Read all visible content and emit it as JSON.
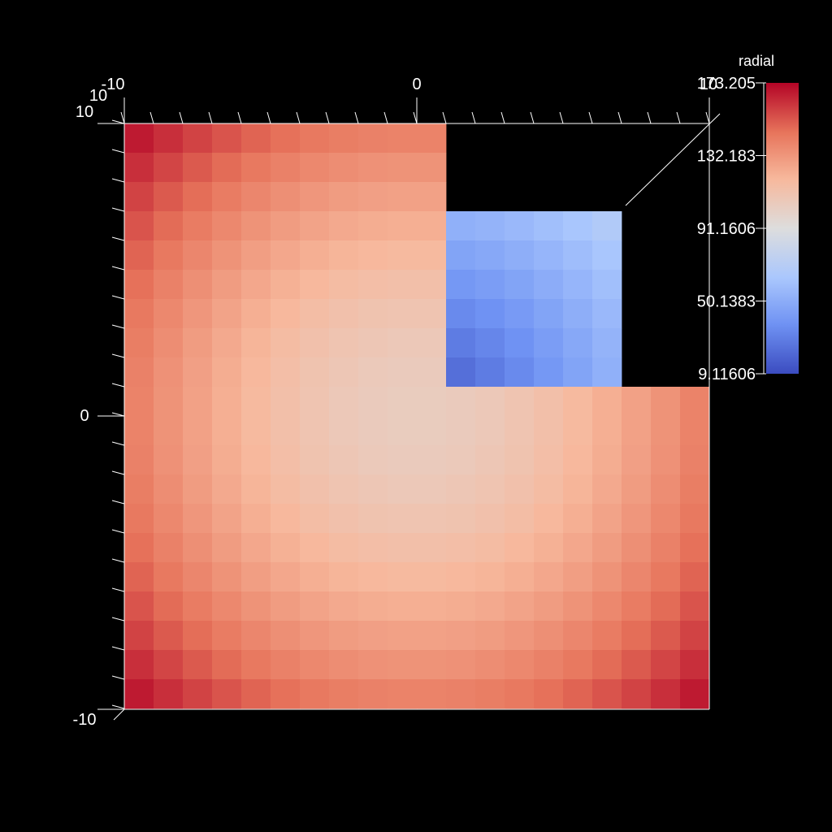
{
  "chart_data": {
    "type": "heatmap",
    "title": "",
    "colorbar": {
      "title": "radial",
      "ticks": [
        "173.205",
        "132.183",
        "91.1606",
        "50.1383",
        "9.11606"
      ],
      "range": [
        9.11606,
        173.205
      ],
      "colormap": "coolwarm"
    },
    "axes": {
      "x": {
        "range": [
          -10,
          10
        ],
        "tick_labels": [
          "-10",
          "0",
          "10"
        ]
      },
      "y": {
        "range": [
          -10,
          10
        ],
        "tick_labels": [
          "-10",
          "0",
          "10"
        ]
      },
      "z_tick_label": "10"
    },
    "grid": {
      "cells_per_axis": 20,
      "cell_size": 1
    },
    "cutout": {
      "x": [
        0.5,
        7.2
      ],
      "y": [
        0.5,
        7.2
      ],
      "floor_z": 7.2
    },
    "value_function": "sqrt(x^2 + y^2 + z^2) scaled to [9.11606, 173.205]",
    "colors": {
      "background": "#000000",
      "axis": "#ffffff",
      "colormap_stops": [
        "#3b4cc0",
        "#6f92f3",
        "#aac7fd",
        "#dddddd",
        "#f7b89c",
        "#e7745b",
        "#b40426"
      ]
    }
  }
}
